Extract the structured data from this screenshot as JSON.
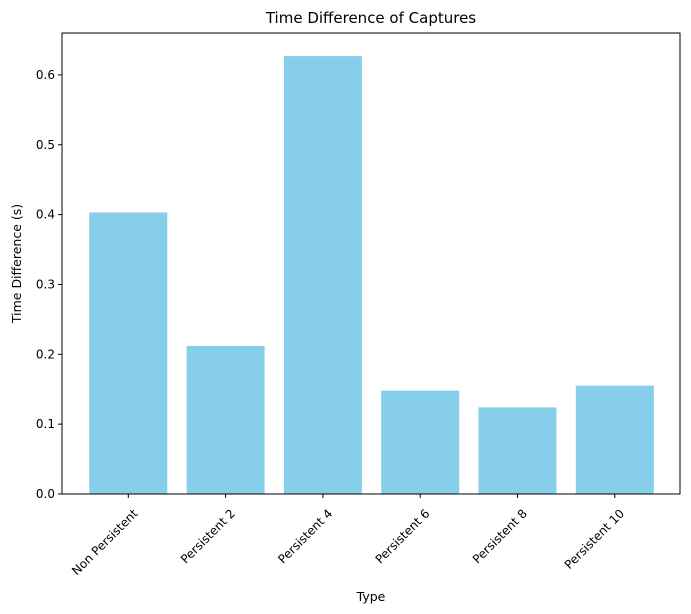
{
  "chart_data": {
    "type": "bar",
    "title": "Time Difference of Captures",
    "xlabel": "Type",
    "ylabel": "Time Difference (s)",
    "categories": [
      "Non Persistent",
      "Persistent 2",
      "Persistent 4",
      "Persistent 6",
      "Persistent 8",
      "Persistent 10"
    ],
    "values": [
      0.403,
      0.212,
      0.627,
      0.148,
      0.124,
      0.155
    ],
    "ylim": [
      0,
      0.66
    ],
    "yticks": [
      0.0,
      0.1,
      0.2,
      0.3,
      0.4,
      0.5,
      0.6
    ],
    "ytick_labels": [
      "0.0",
      "0.1",
      "0.2",
      "0.3",
      "0.4",
      "0.5",
      "0.6"
    ],
    "bar_color": "#87ceeb",
    "grid": false,
    "legend": false
  }
}
